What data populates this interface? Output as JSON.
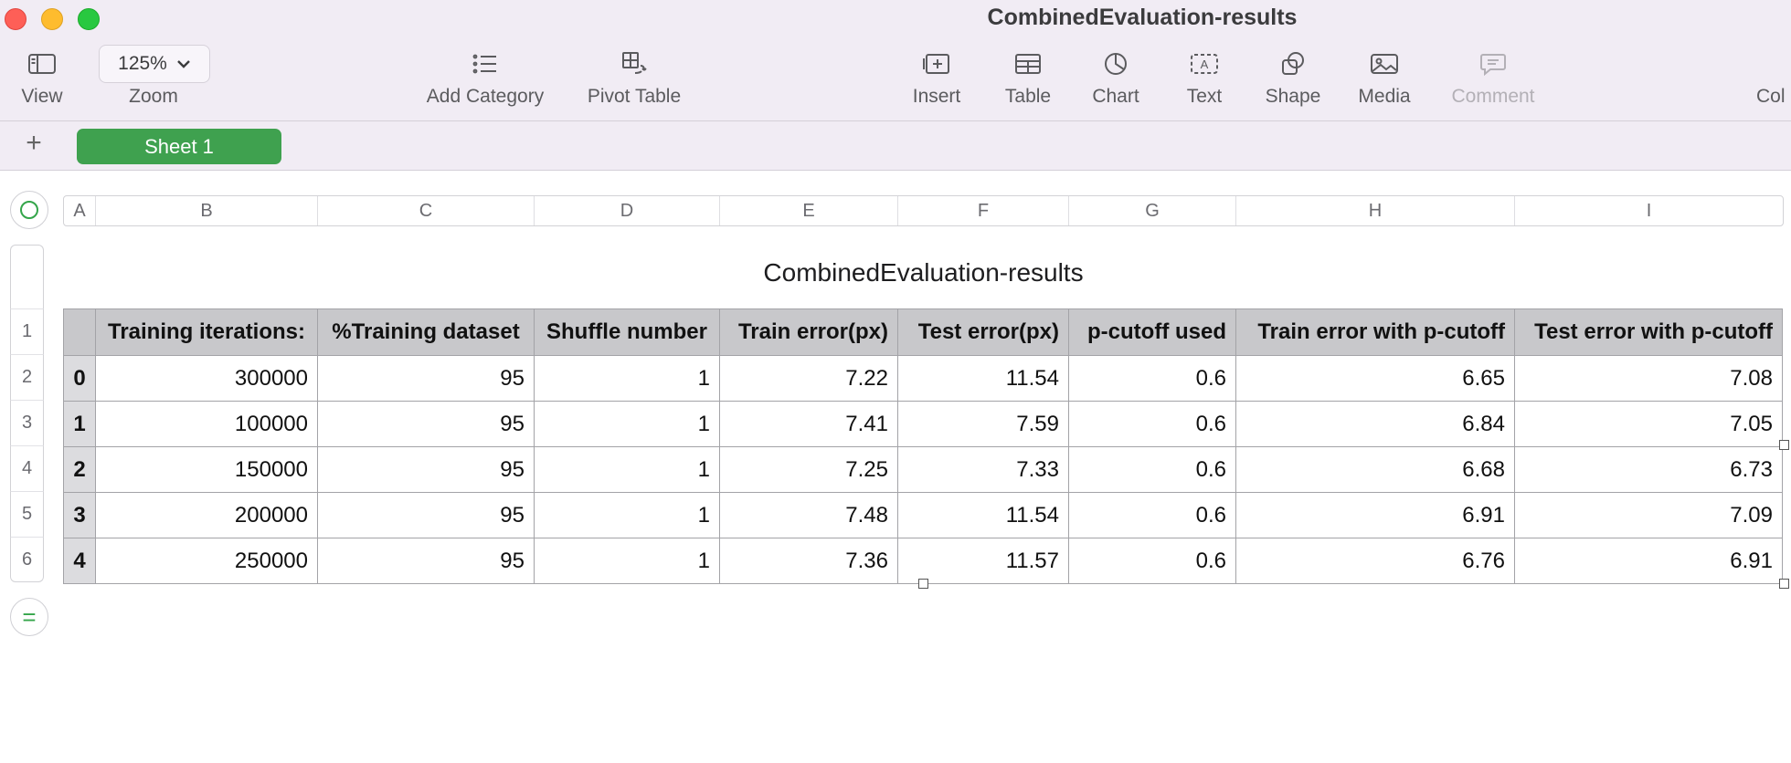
{
  "window": {
    "title": "CombinedEvaluation-results"
  },
  "toolbar": {
    "view_label": "View",
    "zoom_label": "Zoom",
    "zoom_value": "125%",
    "add_category_label": "Add Category",
    "pivot_table_label": "Pivot Table",
    "insert_label": "Insert",
    "table_label": "Table",
    "chart_label": "Chart",
    "text_label": "Text",
    "shape_label": "Shape",
    "media_label": "Media",
    "comment_label": "Comment",
    "collaborate_label_partial": "Col"
  },
  "sheets": {
    "add_symbol": "+",
    "active_tab": "Sheet 1"
  },
  "grid": {
    "columns": [
      "A",
      "B",
      "C",
      "D",
      "E",
      "F",
      "G",
      "H",
      "I"
    ],
    "rows": [
      "1",
      "2",
      "3",
      "4",
      "5",
      "6"
    ]
  },
  "table": {
    "title": "CombinedEvaluation-results",
    "headers": [
      "",
      "Training iterations:",
      "%Training dataset",
      "Shuffle number",
      "Train error(px)",
      "Test error(px)",
      "p-cutoff used",
      "Train error with p-cutoff",
      "Test error with p-cutoff"
    ],
    "rows": [
      [
        "0",
        "300000",
        "95",
        "1",
        "7.22",
        "11.54",
        "0.6",
        "6.65",
        "7.08"
      ],
      [
        "1",
        "100000",
        "95",
        "1",
        "7.41",
        "7.59",
        "0.6",
        "6.84",
        "7.05"
      ],
      [
        "2",
        "150000",
        "95",
        "1",
        "7.25",
        "7.33",
        "0.6",
        "6.68",
        "6.73"
      ],
      [
        "3",
        "200000",
        "95",
        "1",
        "7.48",
        "11.54",
        "0.6",
        "6.91",
        "7.09"
      ],
      [
        "4",
        "250000",
        "95",
        "1",
        "7.36",
        "11.57",
        "0.6",
        "6.76",
        "6.91"
      ]
    ]
  },
  "colors": {
    "accent": "#3fa14f",
    "header_fill": "#c8c8cb",
    "toolbar_bg": "#f1ecf4"
  }
}
